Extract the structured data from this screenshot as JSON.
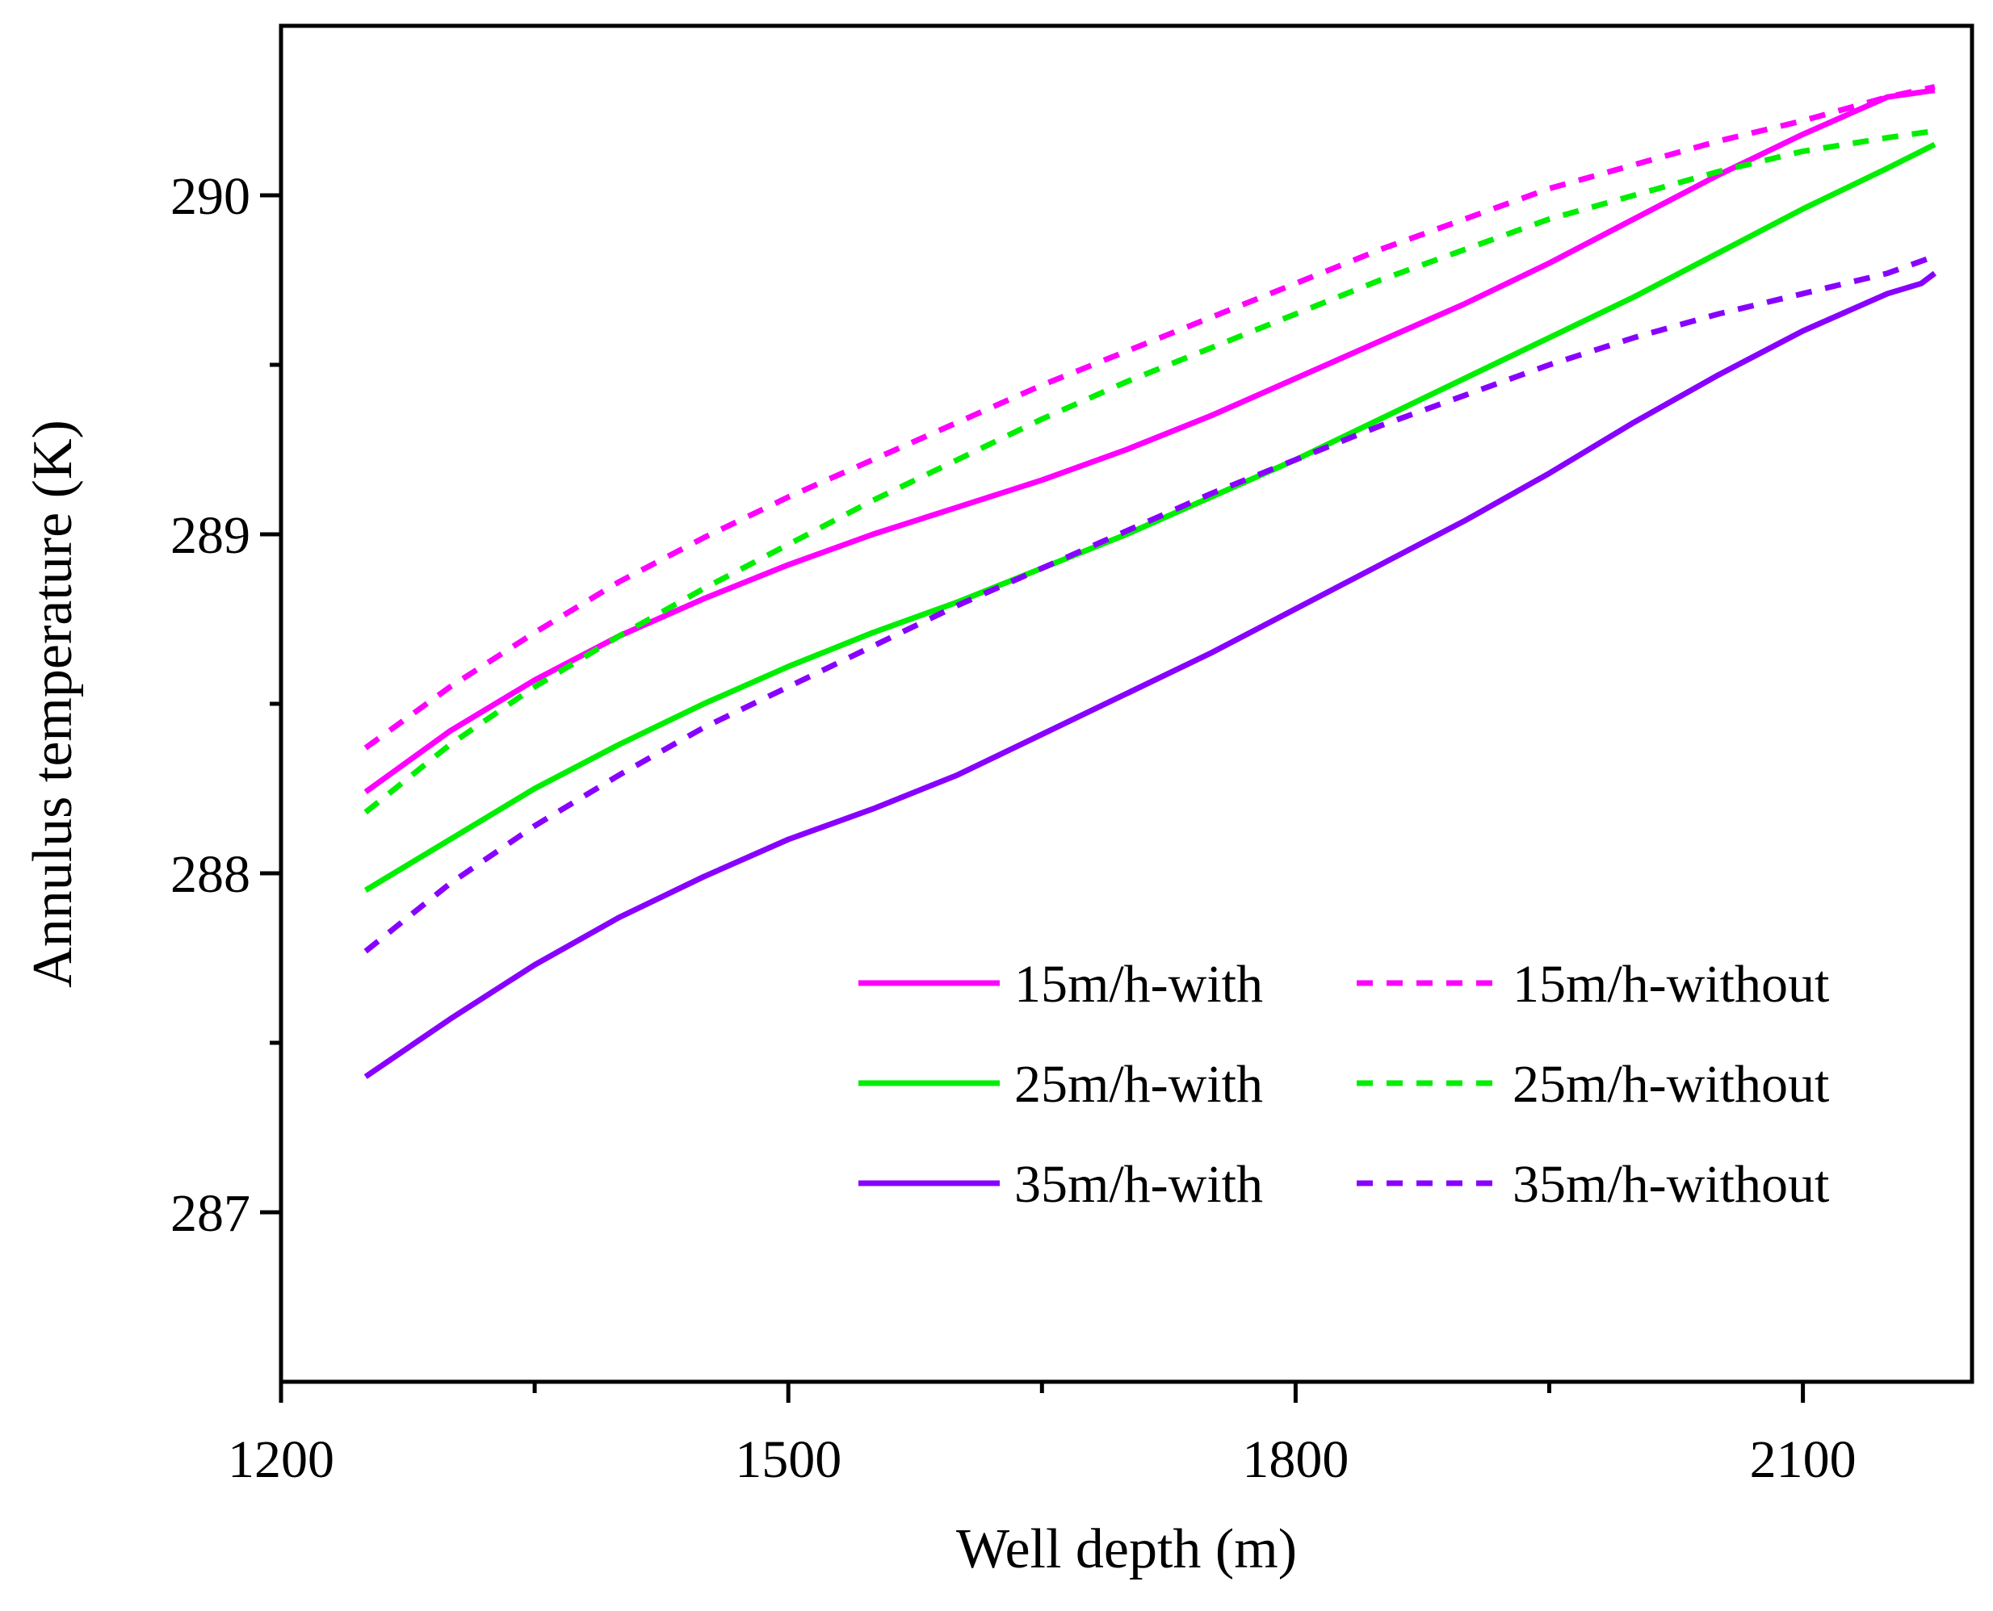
{
  "chart_data": {
    "type": "line",
    "title": "",
    "xlabel": "Well depth (m)",
    "ylabel": "Annulus temperature (K)",
    "xlim": [
      1200,
      2200
    ],
    "ylim": [
      286.5,
      290.5
    ],
    "xticks": [
      1200,
      1500,
      1800,
      2100
    ],
    "xminor": [
      1350,
      1650,
      1950
    ],
    "yticks": [
      287,
      288,
      289,
      290
    ],
    "yminor": [
      287.5,
      288.5,
      289.5
    ],
    "legend": {
      "position": "lower-right",
      "columns": 2
    },
    "series": [
      {
        "name": "15m/h-with",
        "color": "#ff00ff",
        "dash": "solid",
        "x": [
          1250,
          1300,
          1350,
          1400,
          1450,
          1500,
          1550,
          1600,
          1650,
          1700,
          1750,
          1800,
          1850,
          1900,
          1950,
          2000,
          2050,
          2100,
          2150,
          2178
        ],
        "y": [
          288.24,
          288.42,
          288.57,
          288.7,
          288.81,
          288.91,
          289.0,
          289.08,
          289.16,
          289.25,
          289.35,
          289.46,
          289.57,
          289.68,
          289.8,
          289.93,
          290.06,
          290.18,
          290.29,
          290.31
        ]
      },
      {
        "name": "15m/h-without",
        "color": "#ff00ff",
        "dash": "dash",
        "x": [
          1250,
          1300,
          1350,
          1400,
          1450,
          1500,
          1550,
          1600,
          1650,
          1700,
          1750,
          1800,
          1850,
          1900,
          1950,
          2000,
          2050,
          2100,
          2150,
          2178
        ],
        "y": [
          288.37,
          288.55,
          288.71,
          288.86,
          288.99,
          289.11,
          289.22,
          289.33,
          289.44,
          289.54,
          289.64,
          289.74,
          289.84,
          289.93,
          290.02,
          290.09,
          290.16,
          290.22,
          290.29,
          290.32
        ]
      },
      {
        "name": "25m/h-with",
        "color": "#00ee00",
        "dash": "solid",
        "x": [
          1250,
          1300,
          1350,
          1400,
          1450,
          1500,
          1550,
          1600,
          1650,
          1700,
          1750,
          1800,
          1850,
          1900,
          1950,
          2000,
          2050,
          2100,
          2150,
          2178
        ],
        "y": [
          287.95,
          288.1,
          288.25,
          288.38,
          288.5,
          288.61,
          288.71,
          288.8,
          288.9,
          289.0,
          289.11,
          289.22,
          289.34,
          289.46,
          289.58,
          289.7,
          289.83,
          289.96,
          290.08,
          290.15
        ]
      },
      {
        "name": "25m/h-without",
        "color": "#00ee00",
        "dash": "dash",
        "x": [
          1250,
          1300,
          1350,
          1400,
          1450,
          1500,
          1550,
          1600,
          1650,
          1700,
          1750,
          1800,
          1850,
          1900,
          1950,
          2000,
          2050,
          2100,
          2150,
          2178
        ],
        "y": [
          288.18,
          288.38,
          288.55,
          288.7,
          288.84,
          288.97,
          289.1,
          289.22,
          289.34,
          289.45,
          289.55,
          289.65,
          289.75,
          289.84,
          289.93,
          290.0,
          290.07,
          290.13,
          290.17,
          290.19
        ]
      },
      {
        "name": "35m/h-with",
        "color": "#8800ff",
        "dash": "solid",
        "x": [
          1250,
          1300,
          1350,
          1400,
          1450,
          1500,
          1550,
          1600,
          1650,
          1700,
          1750,
          1800,
          1850,
          1900,
          1950,
          2000,
          2050,
          2100,
          2150,
          2170,
          2178
        ],
        "y": [
          287.4,
          287.57,
          287.73,
          287.87,
          287.99,
          288.1,
          288.19,
          288.29,
          288.41,
          288.53,
          288.65,
          288.78,
          288.91,
          289.04,
          289.18,
          289.33,
          289.47,
          289.6,
          289.71,
          289.74,
          289.77
        ]
      },
      {
        "name": "35m/h-without",
        "color": "#8800ff",
        "dash": "dash",
        "x": [
          1250,
          1300,
          1350,
          1400,
          1450,
          1500,
          1550,
          1600,
          1650,
          1700,
          1750,
          1800,
          1850,
          1900,
          1950,
          2000,
          2050,
          2100,
          2150,
          2178
        ],
        "y": [
          287.77,
          287.97,
          288.14,
          288.29,
          288.43,
          288.55,
          288.67,
          288.79,
          288.9,
          289.01,
          289.12,
          289.22,
          289.32,
          289.41,
          289.5,
          289.58,
          289.65,
          289.71,
          289.77,
          289.82
        ]
      }
    ]
  }
}
